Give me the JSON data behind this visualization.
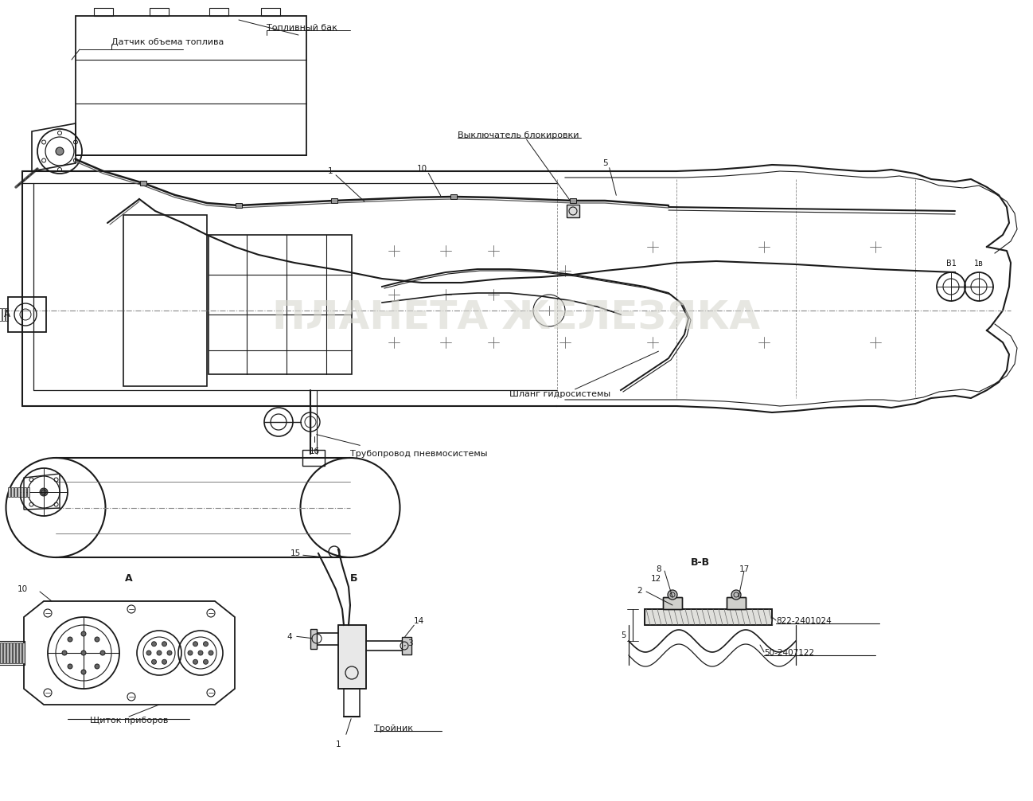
{
  "background_color": "#ffffff",
  "line_color": "#1a1a1a",
  "light_line_color": "#666666",
  "dashed_line_color": "#888888",
  "watermark_color": "#d8d8d0",
  "annotations": {
    "label_sensor": "Датчик объема топлива",
    "label_tank": "Топливный бак",
    "label_switch": "Выключатель блокировки",
    "label_hose": "Шланг гидросистемы",
    "label_pipe": "Трубопровод пневмосистемы",
    "label_panel": "Щиток приборов",
    "label_tee": "Тройник",
    "part1": "822-2401024",
    "part2": "50-2407122"
  },
  "watermark_text": "ПЛАНЕТА ЖЕЛЕЗЯКА",
  "fig_width": 12.98,
  "fig_height": 10.06,
  "dpi": 100
}
